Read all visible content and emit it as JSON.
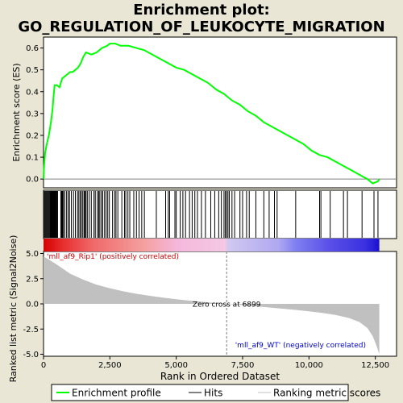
{
  "title_line1": "Enrichment plot:",
  "title_line2": "GO_REGULATION_OF_LEUKOCYTE_MIGRATION",
  "chart_data": {
    "type": "line",
    "es_panel": {
      "ylabel": "Enrichment score (ES)",
      "ylim": [
        -0.04,
        0.65
      ],
      "yticks": [
        0.0,
        0.1,
        0.2,
        0.3,
        0.4,
        0.5,
        0.6
      ],
      "ytick_labels": [
        "0.0",
        "0.1",
        "0.2",
        "0.3",
        "0.4",
        "0.5",
        "0.6"
      ],
      "line_color": "#00ff00",
      "es_curve": [
        [
          0,
          0.0
        ],
        [
          20,
          0.06
        ],
        [
          60,
          0.12
        ],
        [
          120,
          0.16
        ],
        [
          200,
          0.2
        ],
        [
          280,
          0.26
        ],
        [
          340,
          0.32
        ],
        [
          380,
          0.38
        ],
        [
          420,
          0.43
        ],
        [
          500,
          0.43
        ],
        [
          600,
          0.42
        ],
        [
          700,
          0.46
        ],
        [
          800,
          0.47
        ],
        [
          900,
          0.48
        ],
        [
          1000,
          0.49
        ],
        [
          1100,
          0.49
        ],
        [
          1200,
          0.5
        ],
        [
          1300,
          0.51
        ],
        [
          1400,
          0.53
        ],
        [
          1500,
          0.56
        ],
        [
          1600,
          0.58
        ],
        [
          1800,
          0.57
        ],
        [
          2000,
          0.58
        ],
        [
          2100,
          0.59
        ],
        [
          2200,
          0.6
        ],
        [
          2400,
          0.61
        ],
        [
          2500,
          0.62
        ],
        [
          2700,
          0.62
        ],
        [
          2900,
          0.61
        ],
        [
          3200,
          0.61
        ],
        [
          3500,
          0.6
        ],
        [
          3800,
          0.59
        ],
        [
          4100,
          0.57
        ],
        [
          4400,
          0.55
        ],
        [
          4700,
          0.53
        ],
        [
          5000,
          0.51
        ],
        [
          5300,
          0.5
        ],
        [
          5600,
          0.48
        ],
        [
          5900,
          0.46
        ],
        [
          6200,
          0.44
        ],
        [
          6500,
          0.41
        ],
        [
          6800,
          0.39
        ],
        [
          7100,
          0.36
        ],
        [
          7400,
          0.34
        ],
        [
          7700,
          0.31
        ],
        [
          8000,
          0.29
        ],
        [
          8300,
          0.26
        ],
        [
          8600,
          0.24
        ],
        [
          8900,
          0.22
        ],
        [
          9200,
          0.2
        ],
        [
          9500,
          0.18
        ],
        [
          9800,
          0.16
        ],
        [
          10100,
          0.13
        ],
        [
          10400,
          0.11
        ],
        [
          10700,
          0.1
        ],
        [
          11000,
          0.08
        ],
        [
          11300,
          0.06
        ],
        [
          11600,
          0.04
        ],
        [
          11900,
          0.02
        ],
        [
          12200,
          0.0
        ],
        [
          12400,
          -0.02
        ],
        [
          12600,
          -0.01
        ],
        [
          12650,
          0.0
        ]
      ]
    },
    "hits_panel": {
      "hit_ranks": [
        10,
        40,
        70,
        100,
        130,
        160,
        190,
        220,
        250,
        270,
        290,
        310,
        330,
        350,
        370,
        390,
        410,
        430,
        450,
        470,
        500,
        530,
        650,
        680,
        700,
        720,
        750,
        800,
        870,
        930,
        980,
        1050,
        1130,
        1200,
        1280,
        1330,
        1380,
        1430,
        1480,
        1530,
        1560,
        1600,
        1650,
        1720,
        1800,
        1900,
        1950,
        2030,
        2080,
        2120,
        2180,
        2230,
        2300,
        2360,
        2420,
        2480,
        2600,
        2680,
        2730,
        2800,
        2950,
        3050,
        3100,
        3180,
        3250,
        3400,
        3500,
        3600,
        3700,
        3800,
        4250,
        4600,
        4700,
        4750,
        4950,
        5000,
        5150,
        5250,
        5350,
        5500,
        5600,
        5700,
        5800,
        5950,
        6100,
        6300,
        6450,
        6600,
        6700,
        6800,
        6850,
        6900,
        6950,
        7000,
        7100,
        7200,
        7400,
        7500,
        7650,
        7750,
        8000,
        8300,
        8500,
        8700,
        8800,
        9500,
        10400,
        10450,
        10800,
        11300,
        11450,
        12000,
        12450,
        12600
      ],
      "color_bar_stops": [
        [
          0.0,
          "#d40000"
        ],
        [
          0.06,
          "#e83030"
        ],
        [
          0.15,
          "#f06a6a"
        ],
        [
          0.3,
          "#f5a0a0"
        ],
        [
          0.4,
          "#f5b8dc"
        ],
        [
          0.54,
          "#f5c8e4"
        ],
        [
          0.55,
          "#d0c8f0"
        ],
        [
          0.7,
          "#b0a8f0"
        ],
        [
          0.75,
          "#8080f0"
        ],
        [
          0.85,
          "#5a50e8"
        ],
        [
          0.96,
          "#3a30e0"
        ],
        [
          1.0,
          "#1a10d0"
        ]
      ]
    },
    "metric_panel": {
      "ylabel": "Ranked list metric (Signal2Noise)",
      "ylim": [
        -5.2,
        5.2
      ],
      "yticks": [
        5.0,
        2.5,
        0.0,
        -2.5,
        -5.0
      ],
      "ytick_labels": [
        "5.0",
        "2.5",
        "0.0",
        "-2.5",
        "-5.0"
      ],
      "fill_color": "#c0c0c0",
      "metric_curve": [
        [
          0,
          4.7
        ],
        [
          200,
          4.4
        ],
        [
          500,
          3.9
        ],
        [
          1000,
          3.0
        ],
        [
          1500,
          2.4
        ],
        [
          2000,
          1.9
        ],
        [
          2500,
          1.55
        ],
        [
          3000,
          1.25
        ],
        [
          3500,
          1.0
        ],
        [
          4000,
          0.8
        ],
        [
          4500,
          0.62
        ],
        [
          5000,
          0.46
        ],
        [
          5500,
          0.32
        ],
        [
          6000,
          0.2
        ],
        [
          6500,
          0.09
        ],
        [
          6899,
          0.0
        ],
        [
          7500,
          -0.12
        ],
        [
          8000,
          -0.24
        ],
        [
          8500,
          -0.36
        ],
        [
          9000,
          -0.48
        ],
        [
          9500,
          -0.6
        ],
        [
          10000,
          -0.74
        ],
        [
          10500,
          -0.9
        ],
        [
          11000,
          -1.1
        ],
        [
          11500,
          -1.4
        ],
        [
          11900,
          -1.8
        ],
        [
          12200,
          -2.4
        ],
        [
          12400,
          -3.2
        ],
        [
          12550,
          -4.2
        ],
        [
          12650,
          -5.0
        ]
      ],
      "zero_cross_rank": 6899,
      "zero_cross_label": "Zero cross at 6899",
      "pos_label": "'mll_af9_Rip1' (positively correlated)",
      "neg_label": "'mll_af9_WT' (negatively correlated)",
      "pos_color": "#cc0000",
      "neg_color": "#0000cc"
    },
    "xlabel": "Rank in Ordered Dataset",
    "xlim": [
      0,
      13300
    ],
    "xticks": [
      0,
      2500,
      5000,
      7500,
      10000,
      12500
    ],
    "xtick_labels": [
      "0",
      "2,500",
      "5,000",
      "7,500",
      "10,000",
      "12,500"
    ],
    "legend": {
      "placement": "bottom",
      "items": [
        {
          "label": "Enrichment profile",
          "color": "#00ff00"
        },
        {
          "label": "Hits",
          "color": "#000000"
        },
        {
          "label": "Ranking metric scores",
          "color": "#c0c0c0"
        }
      ]
    }
  }
}
